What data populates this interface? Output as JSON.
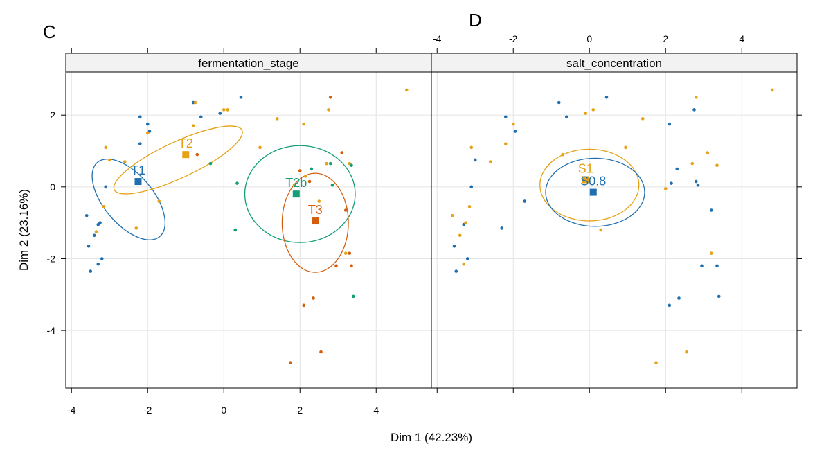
{
  "panel_letters": {
    "left": "C",
    "right": "D"
  },
  "axis_titles": {
    "x": "Dim 1 (42.23%)",
    "y": "Dim 2 (23.16%)"
  },
  "colors": {
    "T1": "#1f6fb0",
    "T2": "#e6a117",
    "T2b": "#119e79",
    "T3": "#d45d0c",
    "S0.8": "#1f6fb0",
    "S1": "#e6a117",
    "grid": "#e4e4e4",
    "strip_bg": "#f2f2f2",
    "frame": "#000000"
  },
  "chart_data": {
    "type": "scatter",
    "xlim": [
      -4.15,
      5.45
    ],
    "ylim": [
      -5.6,
      3.2
    ],
    "x_ticks": [
      -4,
      -2,
      0,
      2,
      4
    ],
    "y_ticks": [
      -4,
      -2,
      0,
      2
    ],
    "grid": true,
    "xlabel": "Dim 1 (42.23%)",
    "ylabel": "Dim 2 (23.16%)",
    "panels": [
      {
        "strip": "fermentation_stage",
        "groups": [
          {
            "name": "T1",
            "centroid": [
              -2.25,
              0.15
            ],
            "ellipse": {
              "cx": -2.5,
              "cy": -0.35,
              "rx": 0.65,
              "ry": 1.35,
              "angle": 40
            }
          },
          {
            "name": "T2",
            "centroid": [
              -1.0,
              0.9
            ],
            "ellipse": {
              "cx": -1.2,
              "cy": 0.75,
              "rx": 1.85,
              "ry": 0.5,
              "angle": 25
            }
          },
          {
            "name": "T2b",
            "centroid": [
              1.9,
              -0.2
            ],
            "ellipse": {
              "cx": 2.0,
              "cy": -0.2,
              "rx": 1.45,
              "ry": 1.35,
              "angle": 0
            }
          },
          {
            "name": "T3",
            "centroid": [
              2.4,
              -0.95
            ],
            "ellipse": {
              "cx": 2.4,
              "cy": -1.0,
              "rx": 0.87,
              "ry": 1.38,
              "angle": 0
            }
          }
        ],
        "points": [
          {
            "x": -3.6,
            "y": -0.8,
            "g": "T1"
          },
          {
            "x": -3.55,
            "y": -1.65,
            "g": "T1"
          },
          {
            "x": -3.5,
            "y": -2.35,
            "g": "T1"
          },
          {
            "x": -3.4,
            "y": -1.35,
            "g": "T1"
          },
          {
            "x": -3.3,
            "y": -1.05,
            "g": "T1"
          },
          {
            "x": -3.25,
            "y": -1.0,
            "g": "T1"
          },
          {
            "x": -3.2,
            "y": -2.0,
            "g": "T1"
          },
          {
            "x": -3.3,
            "y": -2.15,
            "g": "T1"
          },
          {
            "x": -3.1,
            "y": 0.0,
            "g": "T1"
          },
          {
            "x": -2.2,
            "y": 1.95,
            "g": "T1"
          },
          {
            "x": -2.2,
            "y": 1.2,
            "g": "T1"
          },
          {
            "x": -2.0,
            "y": 1.75,
            "g": "T1"
          },
          {
            "x": -1.95,
            "y": 1.55,
            "g": "T1"
          },
          {
            "x": -0.8,
            "y": 2.35,
            "g": "T1"
          },
          {
            "x": -0.6,
            "y": 1.95,
            "g": "T1"
          },
          {
            "x": -0.1,
            "y": 2.05,
            "g": "T1"
          },
          {
            "x": 0.45,
            "y": 2.5,
            "g": "T1"
          },
          {
            "x": -3.1,
            "y": 1.1,
            "g": "T2"
          },
          {
            "x": -3.0,
            "y": 0.75,
            "g": "T2"
          },
          {
            "x": -3.15,
            "y": -0.55,
            "g": "T2"
          },
          {
            "x": -3.35,
            "y": -1.25,
            "g": "T2"
          },
          {
            "x": -2.6,
            "y": 0.7,
            "g": "T2"
          },
          {
            "x": -2.3,
            "y": -1.15,
            "g": "T2"
          },
          {
            "x": -2.0,
            "y": 1.5,
            "g": "T2"
          },
          {
            "x": -1.7,
            "y": -0.4,
            "g": "T2"
          },
          {
            "x": -0.8,
            "y": 1.7,
            "g": "T2"
          },
          {
            "x": -0.75,
            "y": 2.35,
            "g": "T2"
          },
          {
            "x": 0.0,
            "y": 2.15,
            "g": "T2"
          },
          {
            "x": 0.1,
            "y": 2.15,
            "g": "T2"
          },
          {
            "x": 0.95,
            "y": 1.1,
            "g": "T2"
          },
          {
            "x": 1.4,
            "y": 1.9,
            "g": "T2"
          },
          {
            "x": 2.1,
            "y": 1.75,
            "g": "T2"
          },
          {
            "x": 2.7,
            "y": 0.65,
            "g": "T2"
          },
          {
            "x": 2.75,
            "y": 2.15,
            "g": "T2"
          },
          {
            "x": 3.2,
            "y": -1.85,
            "g": "T2"
          },
          {
            "x": 3.3,
            "y": 0.65,
            "g": "T2"
          },
          {
            "x": 4.8,
            "y": 2.7,
            "g": "T2"
          },
          {
            "x": 2.5,
            "y": -0.4,
            "g": "T2"
          },
          {
            "x": 1.85,
            "y": 0.05,
            "g": "T2"
          },
          {
            "x": 2.15,
            "y": 0.3,
            "g": "T2"
          },
          {
            "x": 0.3,
            "y": -1.2,
            "g": "T2"
          },
          {
            "x": -0.35,
            "y": 0.65,
            "g": "T2b"
          },
          {
            "x": 0.35,
            "y": 0.1,
            "g": "T2b"
          },
          {
            "x": 0.3,
            "y": -1.2,
            "g": "T2b"
          },
          {
            "x": 2.3,
            "y": 0.5,
            "g": "T2b"
          },
          {
            "x": 2.85,
            "y": 0.05,
            "g": "T2b"
          },
          {
            "x": 3.35,
            "y": 0.6,
            "g": "T2b"
          },
          {
            "x": 3.4,
            "y": -3.05,
            "g": "T2b"
          },
          {
            "x": 2.8,
            "y": 0.65,
            "g": "T2b"
          },
          {
            "x": -0.7,
            "y": 0.9,
            "g": "T3"
          },
          {
            "x": 2.35,
            "y": -3.1,
            "g": "T3"
          },
          {
            "x": 2.1,
            "y": -3.3,
            "g": "T3"
          },
          {
            "x": 1.75,
            "y": -4.9,
            "g": "T3"
          },
          {
            "x": 2.55,
            "y": -4.6,
            "g": "T3"
          },
          {
            "x": 3.1,
            "y": 0.95,
            "g": "T3"
          },
          {
            "x": 3.2,
            "y": -0.65,
            "g": "T3"
          },
          {
            "x": 3.3,
            "y": -1.85,
            "g": "T3"
          },
          {
            "x": 3.35,
            "y": -2.2,
            "g": "T3"
          },
          {
            "x": 2.95,
            "y": -2.2,
            "g": "T3"
          },
          {
            "x": 2.8,
            "y": 2.5,
            "g": "T3"
          },
          {
            "x": 2.25,
            "y": 0.15,
            "g": "T3"
          },
          {
            "x": 2.0,
            "y": 0.45,
            "g": "T3"
          }
        ]
      },
      {
        "strip": "salt_concentration",
        "groups": [
          {
            "name": "S1",
            "centroid": [
              -0.1,
              0.2
            ],
            "ellipse": {
              "cx": 0.0,
              "cy": 0.05,
              "rx": 1.3,
              "ry": 1.0,
              "angle": 0
            }
          },
          {
            "name": "S0.8",
            "centroid": [
              0.1,
              -0.15
            ],
            "ellipse": {
              "cx": 0.15,
              "cy": -0.15,
              "rx": 1.3,
              "ry": 0.95,
              "angle": 0
            }
          }
        ],
        "points": [
          {
            "x": -3.6,
            "y": -0.8,
            "g": "S1"
          },
          {
            "x": -3.55,
            "y": -1.65,
            "g": "S0.8"
          },
          {
            "x": -3.5,
            "y": -2.35,
            "g": "S0.8"
          },
          {
            "x": -3.4,
            "y": -1.35,
            "g": "S1"
          },
          {
            "x": -3.3,
            "y": -1.05,
            "g": "S0.8"
          },
          {
            "x": -3.25,
            "y": -1.0,
            "g": "S1"
          },
          {
            "x": -3.2,
            "y": -2.0,
            "g": "S0.8"
          },
          {
            "x": -3.3,
            "y": -2.15,
            "g": "S1"
          },
          {
            "x": -3.1,
            "y": 0.0,
            "g": "S0.8"
          },
          {
            "x": -3.1,
            "y": 1.1,
            "g": "S1"
          },
          {
            "x": -3.0,
            "y": 0.75,
            "g": "S0.8"
          },
          {
            "x": -3.15,
            "y": -0.55,
            "g": "S1"
          },
          {
            "x": -2.6,
            "y": 0.7,
            "g": "S1"
          },
          {
            "x": -2.3,
            "y": -1.15,
            "g": "S0.8"
          },
          {
            "x": -2.2,
            "y": 1.95,
            "g": "S0.8"
          },
          {
            "x": -2.2,
            "y": 1.2,
            "g": "S1"
          },
          {
            "x": -2.0,
            "y": 1.75,
            "g": "S1"
          },
          {
            "x": -1.95,
            "y": 1.55,
            "g": "S0.8"
          },
          {
            "x": -1.7,
            "y": -0.4,
            "g": "S0.8"
          },
          {
            "x": -0.8,
            "y": 2.35,
            "g": "S0.8"
          },
          {
            "x": -0.6,
            "y": 1.95,
            "g": "S0.8"
          },
          {
            "x": -0.7,
            "y": 0.9,
            "g": "S1"
          },
          {
            "x": -0.1,
            "y": 2.05,
            "g": "S1"
          },
          {
            "x": 0.1,
            "y": 2.15,
            "g": "S1"
          },
          {
            "x": 0.45,
            "y": 2.5,
            "g": "S0.8"
          },
          {
            "x": 0.3,
            "y": -1.2,
            "g": "S1"
          },
          {
            "x": 0.95,
            "y": 1.1,
            "g": "S1"
          },
          {
            "x": 1.4,
            "y": 1.9,
            "g": "S1"
          },
          {
            "x": 2.1,
            "y": 1.75,
            "g": "S0.8"
          },
          {
            "x": 2.15,
            "y": 0.1,
            "g": "S0.8"
          },
          {
            "x": 2.0,
            "y": -0.05,
            "g": "S1"
          },
          {
            "x": 2.3,
            "y": 0.5,
            "g": "S0.8"
          },
          {
            "x": 2.7,
            "y": 0.65,
            "g": "S1"
          },
          {
            "x": 2.75,
            "y": 2.15,
            "g": "S0.8"
          },
          {
            "x": 2.8,
            "y": 2.5,
            "g": "S1"
          },
          {
            "x": 2.85,
            "y": 0.05,
            "g": "S0.8"
          },
          {
            "x": 2.8,
            "y": 0.15,
            "g": "S0.8"
          },
          {
            "x": 3.1,
            "y": 0.95,
            "g": "S1"
          },
          {
            "x": 3.35,
            "y": 0.6,
            "g": "S1"
          },
          {
            "x": 3.2,
            "y": -0.65,
            "g": "S0.8"
          },
          {
            "x": 3.2,
            "y": -1.85,
            "g": "S1"
          },
          {
            "x": 3.35,
            "y": -2.2,
            "g": "S0.8"
          },
          {
            "x": 2.95,
            "y": -2.2,
            "g": "S0.8"
          },
          {
            "x": 3.4,
            "y": -3.05,
            "g": "S0.8"
          },
          {
            "x": 2.35,
            "y": -3.1,
            "g": "S0.8"
          },
          {
            "x": 2.1,
            "y": -3.3,
            "g": "S0.8"
          },
          {
            "x": 1.75,
            "y": -4.9,
            "g": "S1"
          },
          {
            "x": 2.55,
            "y": -4.6,
            "g": "S1"
          },
          {
            "x": 4.8,
            "y": 2.7,
            "g": "S1"
          }
        ]
      }
    ]
  }
}
